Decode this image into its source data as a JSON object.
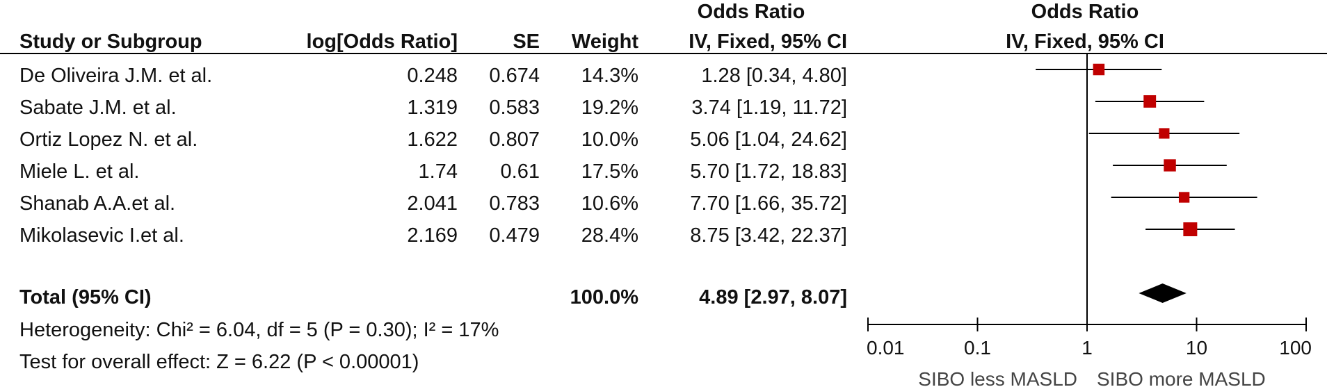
{
  "header": {
    "group_title_left": "Odds Ratio",
    "group_title_right": "Odds Ratio",
    "col_study": "Study or Subgroup",
    "col_log": "log[Odds Ratio]",
    "col_se": "SE",
    "col_weight": "Weight",
    "col_method_left": "IV, Fixed, 95% CI",
    "col_method_right": "IV, Fixed, 95% CI"
  },
  "studies": [
    {
      "name": "De Oliveira J.M. et al.",
      "log_or": "0.248",
      "se": "0.674",
      "weight": "14.3%",
      "ci_text": "1.28 [0.34, 4.80]"
    },
    {
      "name": "Sabate J.M. et al.",
      "log_or": "1.319",
      "se": "0.583",
      "weight": "19.2%",
      "ci_text": "3.74 [1.19, 11.72]"
    },
    {
      "name": "Ortiz Lopez N. et al.",
      "log_or": "1.622",
      "se": "0.807",
      "weight": "10.0%",
      "ci_text": "5.06 [1.04, 24.62]"
    },
    {
      "name": "Miele L. et al.",
      "log_or": "1.74",
      "se": "0.61",
      "weight": "17.5%",
      "ci_text": "5.70 [1.72, 18.83]"
    },
    {
      "name": "Shanab A.A.et al.",
      "log_or": "2.041",
      "se": "0.783",
      "weight": "10.6%",
      "ci_text": "7.70 [1.66, 35.72]"
    },
    {
      "name": "Mikolasevic I.et al.",
      "log_or": "2.169",
      "se": "0.479",
      "weight": "28.4%",
      "ci_text": "8.75 [3.42, 22.37]"
    }
  ],
  "total": {
    "label": "Total (95% CI)",
    "weight": "100.0%",
    "ci_text": "4.89 [2.97, 8.07]"
  },
  "footer": {
    "heterogeneity": "Heterogeneity: Chi² = 6.04, df = 5 (P = 0.30); I² = 17%",
    "overall_effect": "Test for overall effect: Z = 6.22 (P < 0.00001)"
  },
  "colors": {
    "marker": "#c00000",
    "line": "#000000",
    "diamond": "#000000"
  },
  "chart_data": {
    "type": "forest",
    "x_scale": "log",
    "xlim": [
      0.01,
      100
    ],
    "reference_line": 1,
    "ticks": [
      "0.01",
      "0.1",
      "1",
      "10",
      "100"
    ],
    "tick_values": [
      0.01,
      0.1,
      1,
      10,
      100
    ],
    "favours_left": "SIBO less MASLD",
    "favours_right": "SIBO more MASLD",
    "studies": [
      {
        "or": 1.28,
        "lo": 0.34,
        "hi": 4.8,
        "weight": 14.3
      },
      {
        "or": 3.74,
        "lo": 1.19,
        "hi": 11.72,
        "weight": 19.2
      },
      {
        "or": 5.06,
        "lo": 1.04,
        "hi": 24.62,
        "weight": 10.0
      },
      {
        "or": 5.7,
        "lo": 1.72,
        "hi": 18.83,
        "weight": 17.5
      },
      {
        "or": 7.7,
        "lo": 1.66,
        "hi": 35.72,
        "weight": 10.6
      },
      {
        "or": 8.75,
        "lo": 3.42,
        "hi": 22.37,
        "weight": 28.4
      }
    ],
    "pooled": {
      "or": 4.89,
      "lo": 2.97,
      "hi": 8.07
    }
  }
}
